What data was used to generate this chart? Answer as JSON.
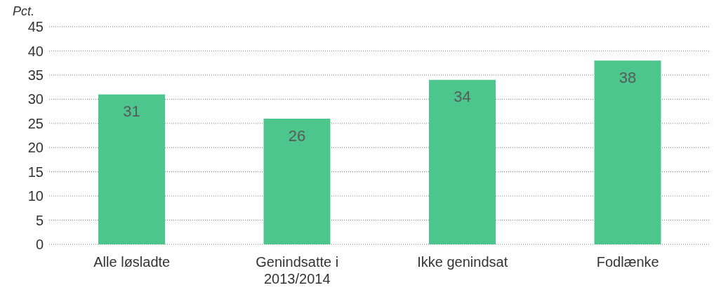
{
  "chart_data": {
    "type": "bar",
    "ylabel": "Pct.",
    "categories": [
      "Alle løsladte",
      "Genindsatte i 2013/2014",
      "Ikke genindsat",
      "Fodlænke"
    ],
    "values": [
      31,
      26,
      34,
      38
    ],
    "color": "#4dc68e",
    "ylim": [
      0,
      45
    ],
    "yticks": [
      0,
      5,
      10,
      15,
      20,
      25,
      30,
      35,
      40,
      45
    ],
    "grid": "y",
    "data_labels": true
  }
}
